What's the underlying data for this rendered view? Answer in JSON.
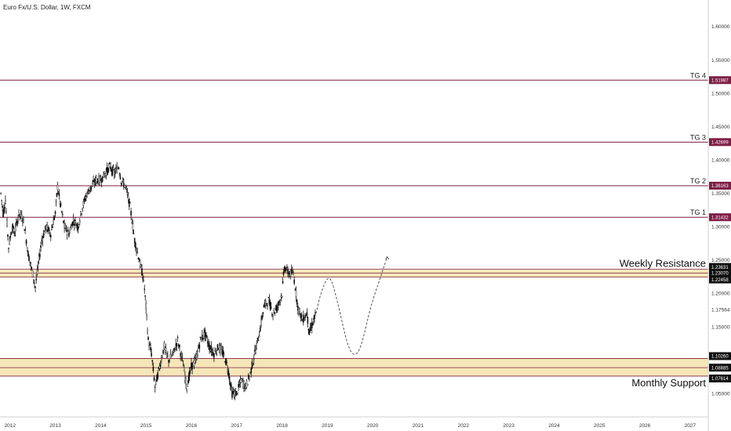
{
  "header": {
    "symbol_title": "Euro Fx/U.S. Dollar, 1W, FXCM"
  },
  "chart_data": {
    "type": "candlestick",
    "title": "Euro Fx/U.S. Dollar, 1W, FXCM",
    "y_range": [
      1.015,
      1.64
    ],
    "x_range": [
      2011.78,
      2027.4
    ],
    "y_ticks": [
      {
        "value": 1.6,
        "label": "1.60000"
      },
      {
        "value": 1.55,
        "label": "1.55000"
      },
      {
        "value": 1.5,
        "label": "1.50000"
      },
      {
        "value": 1.45,
        "label": "1.45000"
      },
      {
        "value": 1.4,
        "label": "1.40000"
      },
      {
        "value": 1.35,
        "label": "1.35000"
      },
      {
        "value": 1.3,
        "label": "1.30000"
      },
      {
        "value": 1.25,
        "label": "1.25000"
      },
      {
        "value": 1.2,
        "label": "1.20000"
      },
      {
        "value": 1.17564,
        "label": "1.17564"
      },
      {
        "value": 1.15,
        "label": "1.15000"
      },
      {
        "value": 1.05,
        "label": "1.05000"
      }
    ],
    "x_ticks": [
      "2012",
      "2013",
      "2014",
      "2015",
      "2016",
      "2017",
      "2018",
      "2019",
      "2020",
      "2021",
      "2022",
      "2023",
      "2024",
      "2025",
      "2026",
      "2027"
    ],
    "levels": [
      {
        "name": "TG 4",
        "value": 1.51987,
        "label": "1.51987",
        "color": "#7d1e45"
      },
      {
        "name": "TG 3",
        "value": 1.42699,
        "label": "1.42699",
        "color": "#7d1e45"
      },
      {
        "name": "TG 2",
        "value": 1.36163,
        "label": "1.36163",
        "color": "#7d1e45"
      },
      {
        "name": "TG 1",
        "value": 1.31432,
        "label": "1.31432",
        "color": "#7d1e45"
      }
    ],
    "zones": [
      {
        "name": "Weekly Resistance",
        "top": 1.23631,
        "mid": 1.2307,
        "bottom": 1.22458,
        "labels": [
          "1.23631",
          "1.23070",
          "1.22458"
        ],
        "fill": "#f5e6b8",
        "border": "#7d1e45"
      },
      {
        "name": "Monthly Support",
        "top": 1.1026,
        "mid": 1.08885,
        "bottom": 1.07614,
        "labels": [
          "1.10260",
          "1.08885",
          "1.07614"
        ],
        "fill": "#f5e6b8",
        "border": "#7d1e45"
      }
    ],
    "price_path": [
      [
        2011.8,
        1.35
      ],
      [
        2011.85,
        1.32
      ],
      [
        2011.9,
        1.34
      ],
      [
        2011.97,
        1.27
      ],
      [
        2012.05,
        1.3
      ],
      [
        2012.1,
        1.29
      ],
      [
        2012.2,
        1.32
      ],
      [
        2012.3,
        1.31
      ],
      [
        2012.4,
        1.26
      ],
      [
        2012.5,
        1.23
      ],
      [
        2012.56,
        1.21
      ],
      [
        2012.62,
        1.24
      ],
      [
        2012.7,
        1.28
      ],
      [
        2012.8,
        1.3
      ],
      [
        2012.9,
        1.29
      ],
      [
        2013.0,
        1.32
      ],
      [
        2013.05,
        1.36
      ],
      [
        2013.12,
        1.33
      ],
      [
        2013.2,
        1.3
      ],
      [
        2013.3,
        1.29
      ],
      [
        2013.4,
        1.31
      ],
      [
        2013.5,
        1.3
      ],
      [
        2013.6,
        1.33
      ],
      [
        2013.7,
        1.35
      ],
      [
        2013.8,
        1.36
      ],
      [
        2013.9,
        1.37
      ],
      [
        2014.0,
        1.37
      ],
      [
        2014.1,
        1.38
      ],
      [
        2014.2,
        1.39
      ],
      [
        2014.3,
        1.38
      ],
      [
        2014.4,
        1.39
      ],
      [
        2014.45,
        1.37
      ],
      [
        2014.55,
        1.36
      ],
      [
        2014.65,
        1.33
      ],
      [
        2014.75,
        1.28
      ],
      [
        2014.85,
        1.25
      ],
      [
        2014.95,
        1.22
      ],
      [
        2015.0,
        1.18
      ],
      [
        2015.05,
        1.13
      ],
      [
        2015.12,
        1.11
      ],
      [
        2015.2,
        1.06
      ],
      [
        2015.3,
        1.09
      ],
      [
        2015.4,
        1.12
      ],
      [
        2015.5,
        1.1
      ],
      [
        2015.6,
        1.11
      ],
      [
        2015.7,
        1.13
      ],
      [
        2015.8,
        1.1
      ],
      [
        2015.9,
        1.06
      ],
      [
        2016.0,
        1.09
      ],
      [
        2016.1,
        1.1
      ],
      [
        2016.2,
        1.13
      ],
      [
        2016.3,
        1.14
      ],
      [
        2016.4,
        1.12
      ],
      [
        2016.5,
        1.11
      ],
      [
        2016.6,
        1.12
      ],
      [
        2016.7,
        1.11
      ],
      [
        2016.8,
        1.09
      ],
      [
        2016.9,
        1.05
      ],
      [
        2017.0,
        1.05
      ],
      [
        2017.1,
        1.07
      ],
      [
        2017.2,
        1.06
      ],
      [
        2017.3,
        1.08
      ],
      [
        2017.4,
        1.11
      ],
      [
        2017.5,
        1.14
      ],
      [
        2017.6,
        1.18
      ],
      [
        2017.7,
        1.19
      ],
      [
        2017.8,
        1.17
      ],
      [
        2017.9,
        1.18
      ],
      [
        2018.0,
        1.2
      ],
      [
        2018.05,
        1.24
      ],
      [
        2018.15,
        1.23
      ],
      [
        2018.25,
        1.23
      ],
      [
        2018.35,
        1.18
      ],
      [
        2018.45,
        1.16
      ],
      [
        2018.55,
        1.17
      ],
      [
        2018.6,
        1.14
      ],
      [
        2018.7,
        1.16
      ],
      [
        2018.75,
        1.17
      ]
    ],
    "projection": [
      [
        2018.75,
        1.17
      ],
      [
        2018.85,
        1.2
      ],
      [
        2019.0,
        1.225
      ],
      [
        2019.1,
        1.22
      ],
      [
        2019.25,
        1.18
      ],
      [
        2019.45,
        1.12
      ],
      [
        2019.6,
        1.105
      ],
      [
        2019.75,
        1.12
      ],
      [
        2019.95,
        1.18
      ],
      [
        2020.15,
        1.22
      ],
      [
        2020.32,
        1.255
      ]
    ]
  }
}
